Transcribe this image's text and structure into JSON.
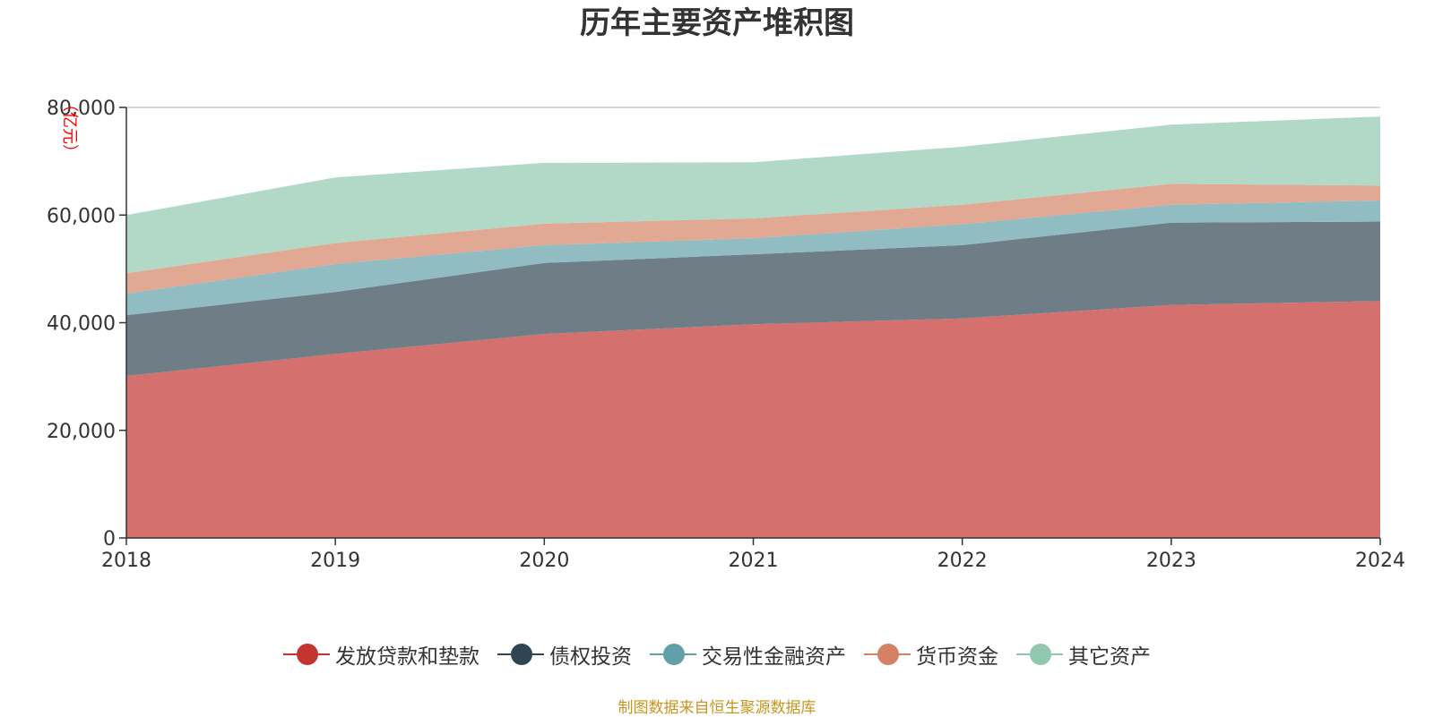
{
  "chart_data": {
    "type": "area",
    "stacked": true,
    "title": "历年主要资产堆积图",
    "ylabel": "亿元",
    "x": [
      "2018",
      "2019",
      "2020",
      "2021",
      "2022",
      "2023",
      "2024"
    ],
    "ylim": [
      0,
      80000
    ],
    "yticks": [
      "0",
      "20,000",
      "40,000",
      "60,000",
      "80,000"
    ],
    "grid": true,
    "legend_position": "bottom",
    "series": [
      {
        "name": "发放贷款和垫款",
        "color": "#c23531",
        "area_color": "#d4706e",
        "values": [
          30100,
          34200,
          37900,
          39700,
          40800,
          43300,
          44000
        ]
      },
      {
        "name": "债权投资",
        "color": "#2f4554",
        "area_color": "#6f7d87",
        "values": [
          11300,
          11500,
          13200,
          13000,
          13600,
          15300,
          14800
        ]
      },
      {
        "name": "交易性金融资产",
        "color": "#61a0a8",
        "area_color": "#90bcc2",
        "values": [
          4000,
          5200,
          3300,
          3000,
          3900,
          3300,
          3900
        ]
      },
      {
        "name": "货币资金",
        "color": "#d48265",
        "area_color": "#e1a893",
        "values": [
          3800,
          3900,
          4000,
          3700,
          3600,
          3900,
          2800
        ]
      },
      {
        "name": "其它资产",
        "color": "#91c7ae",
        "area_color": "#b2d9c7",
        "values": [
          10800,
          12200,
          11300,
          10400,
          10800,
          11000,
          12800
        ]
      }
    ]
  },
  "source_note": "制图数据来自恒生聚源数据库"
}
